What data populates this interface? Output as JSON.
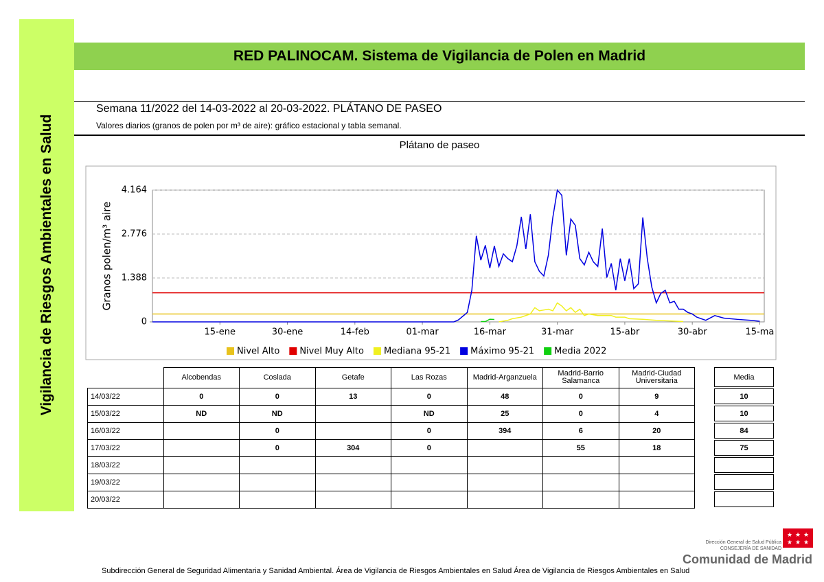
{
  "sidebar": "Vigilancia de Riesgos Ambientales en Salud",
  "header": {
    "title": "RED PALINOCAM. Sistema de Vigilancia de Polen en Madrid",
    "subtitle": "Semana 11/2022 del 14-03-2022 al 20-03-2022. PLÁTANO DE PASEO",
    "description": "Valores diarios (granos de polen por m³ de aire): gráfico estacional y tabla semanal."
  },
  "chart_data": {
    "type": "line",
    "title": "Plátano de paseo",
    "y_label": "Granos polen/m³ aire",
    "xlim": [
      0,
      136
    ],
    "ylim": [
      0,
      4164
    ],
    "xticks": [
      {
        "value": 15,
        "label": "15-ene"
      },
      {
        "value": 30,
        "label": "30-ene"
      },
      {
        "value": 45,
        "label": "14-feb"
      },
      {
        "value": 60,
        "label": "01-mar"
      },
      {
        "value": 75,
        "label": "16-mar"
      },
      {
        "value": 90,
        "label": "31-mar"
      },
      {
        "value": 105,
        "label": "15-abr"
      },
      {
        "value": 120,
        "label": "30-abr"
      },
      {
        "value": 135,
        "label": "15-ma"
      }
    ],
    "yticks": [
      0,
      {
        "value": 1388,
        "label": "1.388"
      },
      {
        "value": 2776,
        "label": "2.776"
      },
      {
        "value": 4164,
        "label": "4.164"
      }
    ],
    "grid": true,
    "series": [
      {
        "name": "Nivel Alto",
        "color": "#e8c21c",
        "x": [
          0,
          136
        ],
        "values": [
          250,
          250
        ]
      },
      {
        "name": "Nivel Muy Alto",
        "color": "#e00000",
        "x": [
          0,
          136
        ],
        "values": [
          920,
          920
        ]
      },
      {
        "name": "Mediana 95-21",
        "color": "#f0f020",
        "x": [
          77,
          79,
          80,
          82,
          84,
          85,
          86,
          88,
          89,
          90,
          91,
          92,
          93,
          94,
          95,
          96,
          97,
          99,
          100,
          102,
          103,
          105,
          106,
          109,
          112,
          115,
          118
        ],
        "values": [
          0,
          50,
          100,
          150,
          250,
          450,
          350,
          400,
          350,
          600,
          500,
          350,
          450,
          300,
          400,
          200,
          250,
          200,
          200,
          200,
          150,
          150,
          100,
          80,
          50,
          30,
          10
        ]
      },
      {
        "name": "Máximo 95-21",
        "color": "#0000e0",
        "x": [
          0,
          67,
          68,
          70,
          71,
          72,
          73,
          74,
          75,
          76,
          77,
          78,
          79,
          80,
          81,
          82,
          83,
          84,
          85,
          86,
          87,
          88,
          89,
          90,
          91,
          92,
          93,
          94,
          95,
          96,
          97,
          98,
          99,
          100,
          101,
          102,
          103,
          104,
          105,
          106,
          107,
          108,
          109,
          110,
          111,
          112,
          113,
          114,
          115,
          116,
          117,
          118,
          119,
          120,
          121,
          123,
          125,
          127,
          130,
          133,
          135
        ],
        "values": [
          0,
          0,
          60,
          300,
          1000,
          2720,
          1950,
          2420,
          1700,
          2400,
          1750,
          2150,
          2000,
          1900,
          2400,
          3320,
          2300,
          3400,
          1900,
          1600,
          1450,
          2100,
          3300,
          4164,
          4000,
          2100,
          3250,
          3050,
          2000,
          1800,
          2200,
          1900,
          1750,
          2950,
          1400,
          1850,
          1000,
          2000,
          1300,
          2000,
          1050,
          1200,
          3300,
          2000,
          1100,
          600,
          900,
          1000,
          600,
          650,
          400,
          400,
          300,
          250,
          150,
          50,
          200,
          120,
          80,
          50,
          20
        ]
      },
      {
        "name": "Media 2022",
        "color": "#10d010",
        "x": [
          73,
          74,
          75,
          76
        ],
        "values": [
          10,
          10,
          84,
          75
        ]
      }
    ]
  },
  "table": {
    "columns": [
      "Alcobendas",
      "Coslada",
      "Getafe",
      "Las Rozas",
      "Madrid-Arganzuela",
      "Madrid-Barrio Salamanca",
      "Madrid-Ciudad Universitaria"
    ],
    "rows": [
      [
        "14/03/22",
        0,
        0,
        13,
        0,
        48,
        0,
        9
      ],
      [
        "15/03/22",
        "ND",
        "ND",
        null,
        "ND",
        25,
        0,
        4
      ],
      [
        "16/03/22",
        null,
        0,
        null,
        0,
        394,
        6,
        20
      ],
      [
        "17/03/22",
        null,
        0,
        304,
        0,
        null,
        55,
        18
      ],
      [
        "18/03/22",
        null,
        null,
        null,
        null,
        null,
        null,
        null
      ],
      [
        "19/03/22",
        null,
        null,
        null,
        null,
        null,
        null,
        null
      ],
      [
        "20/03/22",
        null,
        null,
        null,
        null,
        null,
        null,
        null
      ]
    ],
    "media_header": "Media",
    "media": [
      10,
      10,
      84,
      75,
      null,
      null,
      null
    ]
  },
  "logo": {
    "line1": "Dirección General de Salud Pública",
    "line2": "CONSEJERÍA DE SANIDAD",
    "name": "Comunidad de Madrid"
  },
  "footer": "Subdirección General de Seguridad Alimentaria y Sanidad Ambiental. Área de Vigilancia de Riesgos Ambientales en Salud Área de Vigilancia de Riesgos Ambientales en Salud"
}
